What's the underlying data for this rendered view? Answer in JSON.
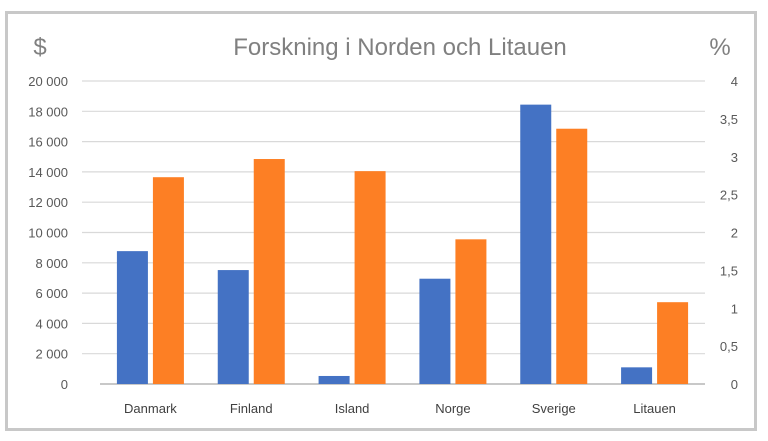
{
  "chart_data": {
    "type": "bar",
    "title": "Forskning i Norden och Litauen",
    "ylabel": "$",
    "y2label": "%",
    "categories": [
      "Danmark",
      "Finland",
      "Island",
      "Norge",
      "Sverige",
      "Litauen"
    ],
    "ylim": [
      0,
      20000
    ],
    "y2lim": [
      0,
      4
    ],
    "yticks": [
      "0",
      "2 000",
      "4 000",
      "6 000",
      "8 000",
      "10 000",
      "12 000",
      "14 000",
      "16 000",
      "18 000",
      "20 000"
    ],
    "y2ticks": [
      "0",
      "0,5",
      "1",
      "1,5",
      "2",
      "2,5",
      "3",
      "3,5",
      "4"
    ],
    "grid": true,
    "legend": "none",
    "series": [
      {
        "axis": "left",
        "color": "#4472c4",
        "values": [
          8770,
          7520,
          530,
          6950,
          18440,
          1100
        ]
      },
      {
        "axis": "right",
        "color": "#fd7f24",
        "values": [
          2.73,
          2.97,
          2.81,
          1.91,
          3.37,
          1.08
        ]
      }
    ]
  }
}
